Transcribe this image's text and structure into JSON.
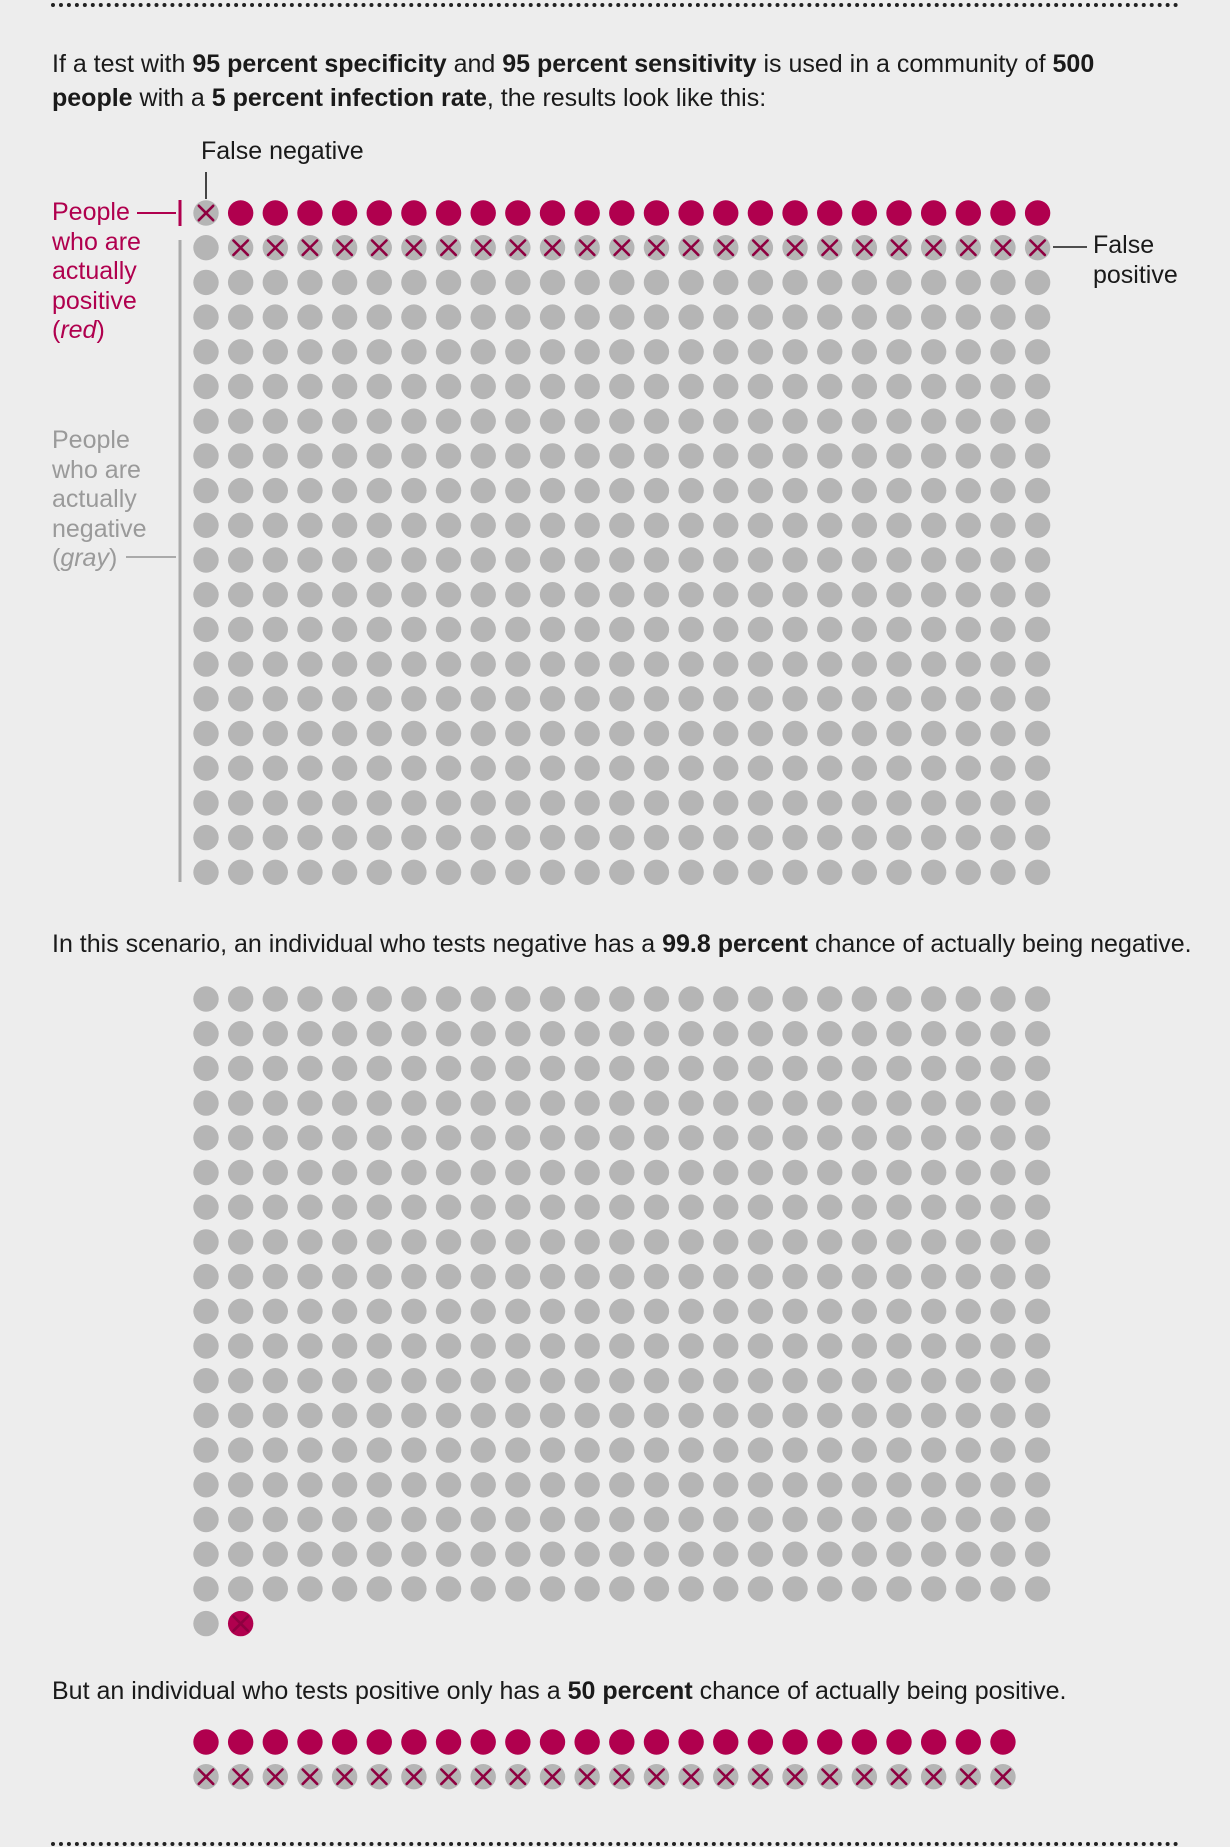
{
  "intro": {
    "t1": "If a test with ",
    "b1": "95 percent specificity",
    "t2": " and ",
    "b2": "95 percent sensitivity",
    "t3": " is used in a community of ",
    "b3": "500 people",
    "t4": " with a ",
    "b4": "5 percent infection rate",
    "t5": ", the results look like this:"
  },
  "labels": {
    "false_negative": "False negative",
    "false_positive_line1": "False",
    "false_positive_line2": "positive",
    "positive_line1": "People",
    "positive_line2": "who are",
    "positive_line3": "actually",
    "positive_line4": "positive",
    "positive_paren_open": "(",
    "positive_color": "red",
    "positive_paren_close": ")",
    "negative_line1": "People",
    "negative_line2": "who are",
    "negative_line3": "actually",
    "negative_line4": "negative",
    "negative_paren_open": "(",
    "negative_color": "gray",
    "negative_paren_close": ")"
  },
  "negative_text": {
    "t1": "In this scenario, an individual who tests negative has a ",
    "b1": "99.8 percent",
    "t2": " chance of actually being negative."
  },
  "positive_text": {
    "t1": "But an individual who tests positive only has a ",
    "b1": "50 percent",
    "t2": " chance of actually being positive."
  },
  "colors": {
    "positive": "#b0004e",
    "negative": "#b5b5b5",
    "background": "#ededed",
    "cross": "#8e0040"
  },
  "chart_data": [
    {
      "type": "table",
      "description_key": "population grid",
      "population": 500,
      "columns": 25,
      "actually_positive": 25,
      "actually_negative": 475,
      "false_negatives": 1,
      "false_positives": 24,
      "legend": {
        "circle_red": "actually positive",
        "circle_gray": "actually negative",
        "cross": "wrong test result"
      }
    },
    {
      "type": "table",
      "description_key": "tests negative",
      "total": 452,
      "columns": 25,
      "true_negatives": 451,
      "false_negatives": 1,
      "percent_actually_negative": 99.8
    },
    {
      "type": "table",
      "description_key": "tests positive",
      "total": 48,
      "columns": 24,
      "true_positives": 24,
      "false_positives": 24,
      "percent_actually_positive": 50
    }
  ]
}
